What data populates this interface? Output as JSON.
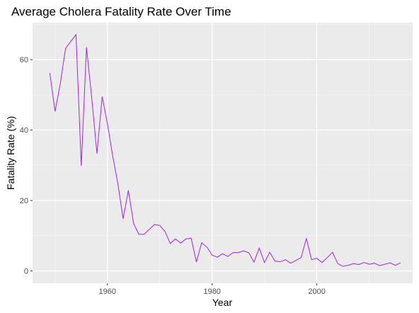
{
  "chart_data": {
    "type": "line",
    "title": "Average Cholera Fatality Rate Over Time",
    "xlabel": "Year",
    "ylabel": "Fatality Rate (%)",
    "xlim": [
      1945.7,
      2018.3
    ],
    "ylim": [
      -3.5,
      70.5
    ],
    "x_ticks": [
      1960,
      1980,
      2000
    ],
    "y_ticks": [
      0,
      20,
      40,
      60
    ],
    "grid": true,
    "legend": "none",
    "colors": {
      "line": "#a020f0",
      "panel": "#ebebeb",
      "grid_major": "#ffffff",
      "grid_minor": "#f7f7f7",
      "tick": "#333333"
    },
    "series": [
      {
        "x": [
          1949,
          1950,
          1951,
          1952,
          1954,
          1955,
          1956,
          1957,
          1958,
          1959,
          1960,
          1961,
          1962,
          1963,
          1964,
          1965,
          1966,
          1967,
          1968,
          1969,
          1970,
          1971,
          1972,
          1973,
          1974,
          1975,
          1976,
          1977,
          1978,
          1979,
          1980,
          1981,
          1982,
          1983,
          1984,
          1985,
          1986,
          1987,
          1988,
          1989,
          1990,
          1991,
          1992,
          1993,
          1994,
          1995,
          1996,
          1997,
          1998,
          1999,
          2000,
          2001,
          2002,
          2003,
          2004,
          2005,
          2006,
          2007,
          2008,
          2009,
          2010,
          2011,
          2012,
          2013,
          2014,
          2015,
          2016
        ],
        "y": [
          56.2,
          45.3,
          53.2,
          63.2,
          67.1,
          29.8,
          63.5,
          49.2,
          33.3,
          49.5,
          41.8,
          32.7,
          24.7,
          14.8,
          22.9,
          13.5,
          10.4,
          10.4,
          11.8,
          13.2,
          12.9,
          11.2,
          7.8,
          9.1,
          7.9,
          9.1,
          9.3,
          2.5,
          8.0,
          6.8,
          4.5,
          3.9,
          4.9,
          4.1,
          5.2,
          5.2,
          5.7,
          5.2,
          2.5,
          6.5,
          2.4,
          5.3,
          2.8,
          2.6,
          3.2,
          2.2,
          3.0,
          3.8,
          9.2,
          3.2,
          3.6,
          2.4,
          3.8,
          5.3,
          2.1,
          1.3,
          1.6,
          2.1,
          1.8,
          2.4,
          1.9,
          2.2,
          1.5,
          1.9,
          2.3,
          1.6,
          2.3
        ]
      }
    ]
  }
}
